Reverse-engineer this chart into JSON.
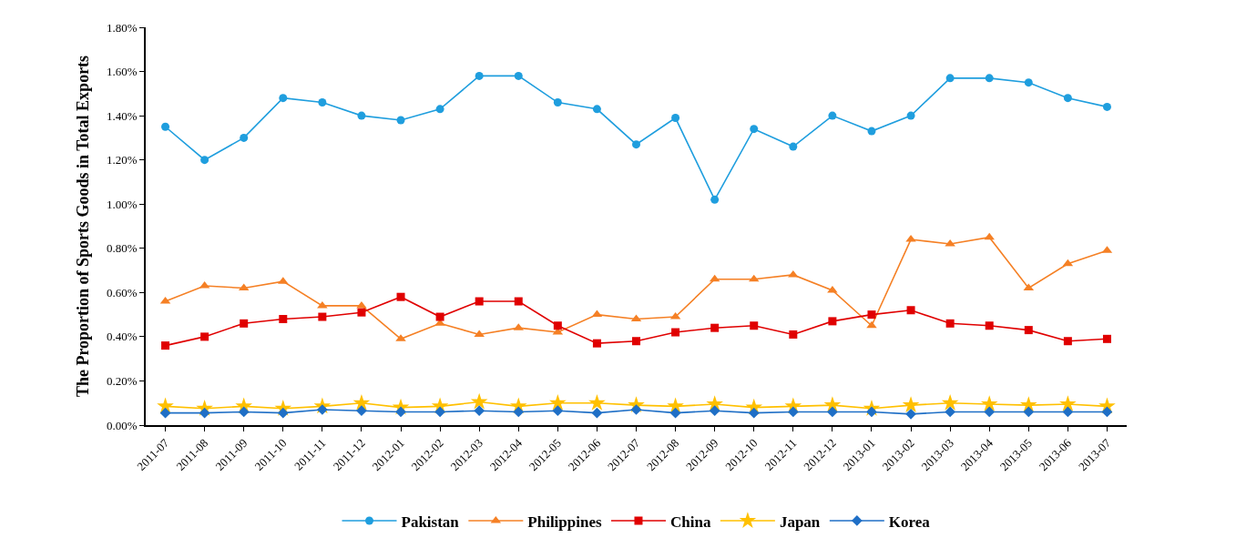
{
  "chart_data": {
    "type": "line",
    "ylabel": "The Proportion of Sports Goods in Total Exports",
    "categories": [
      "2011-07",
      "2011-08",
      "2011-09",
      "2011-10",
      "2011-11",
      "2011-12",
      "2012-01",
      "2012-02",
      "2012-03",
      "2012-04",
      "2012-05",
      "2012-06",
      "2012-07",
      "2012-08",
      "2012-09",
      "2012-10",
      "2012-11",
      "2012-12",
      "2013-01",
      "2013-02",
      "2013-03",
      "2013-04",
      "2013-05",
      "2013-06",
      "2013-07"
    ],
    "series": [
      {
        "name": "Pakistan",
        "color": "#1f9ede",
        "marker": "circle",
        "values": [
          1.35,
          1.2,
          1.3,
          1.48,
          1.46,
          1.4,
          1.38,
          1.43,
          1.58,
          1.58,
          1.46,
          1.43,
          1.27,
          1.39,
          1.02,
          1.34,
          1.26,
          1.4,
          1.33,
          1.4,
          1.57,
          1.57,
          1.55,
          1.48,
          1.44
        ]
      },
      {
        "name": "Philippines",
        "color": "#f58025",
        "marker": "triangle",
        "values": [
          0.56,
          0.63,
          0.62,
          0.65,
          0.54,
          0.54,
          0.39,
          0.46,
          0.41,
          0.44,
          0.42,
          0.5,
          0.48,
          0.49,
          0.66,
          0.66,
          0.68,
          0.61,
          0.45,
          0.84,
          0.82,
          0.85,
          0.62,
          0.73,
          0.79
        ]
      },
      {
        "name": "China",
        "color": "#e00000",
        "marker": "square",
        "values": [
          0.36,
          0.4,
          0.46,
          0.48,
          0.49,
          0.51,
          0.58,
          0.49,
          0.56,
          0.56,
          0.45,
          0.37,
          0.38,
          0.42,
          0.44,
          0.45,
          0.41,
          0.47,
          0.5,
          0.52,
          0.46,
          0.45,
          0.43,
          0.38,
          0.39
        ]
      },
      {
        "name": "Japan",
        "color": "#ffc000",
        "marker": "star",
        "values": [
          0.085,
          0.075,
          0.085,
          0.075,
          0.085,
          0.1,
          0.08,
          0.085,
          0.105,
          0.085,
          0.1,
          0.1,
          0.09,
          0.085,
          0.095,
          0.08,
          0.085,
          0.09,
          0.075,
          0.09,
          0.1,
          0.095,
          0.09,
          0.095,
          0.085
        ]
      },
      {
        "name": "Korea",
        "color": "#1f6fc6",
        "marker": "diamond",
        "values": [
          0.055,
          0.055,
          0.06,
          0.055,
          0.07,
          0.065,
          0.06,
          0.06,
          0.065,
          0.06,
          0.065,
          0.055,
          0.07,
          0.055,
          0.065,
          0.055,
          0.06,
          0.06,
          0.06,
          0.05,
          0.06,
          0.06,
          0.06,
          0.06,
          0.06
        ]
      }
    ],
    "ylim": [
      0,
      1.8
    ],
    "yticks": [
      {
        "value": 0,
        "label": "0.00%"
      },
      {
        "value": 0.2,
        "label": "0.20%"
      },
      {
        "value": 0.4,
        "label": "0.40%"
      },
      {
        "value": 0.6,
        "label": "0.60%"
      },
      {
        "value": 0.8,
        "label": "0.80%"
      },
      {
        "value": 1.0,
        "label": "1.00%"
      },
      {
        "value": 1.2,
        "label": "1.20%"
      },
      {
        "value": 1.4,
        "label": "1.40%"
      },
      {
        "value": 1.6,
        "label": "1.60%"
      },
      {
        "value": 1.8,
        "label": "1.80%"
      }
    ],
    "legend": "bottom",
    "line_style": "solid"
  }
}
